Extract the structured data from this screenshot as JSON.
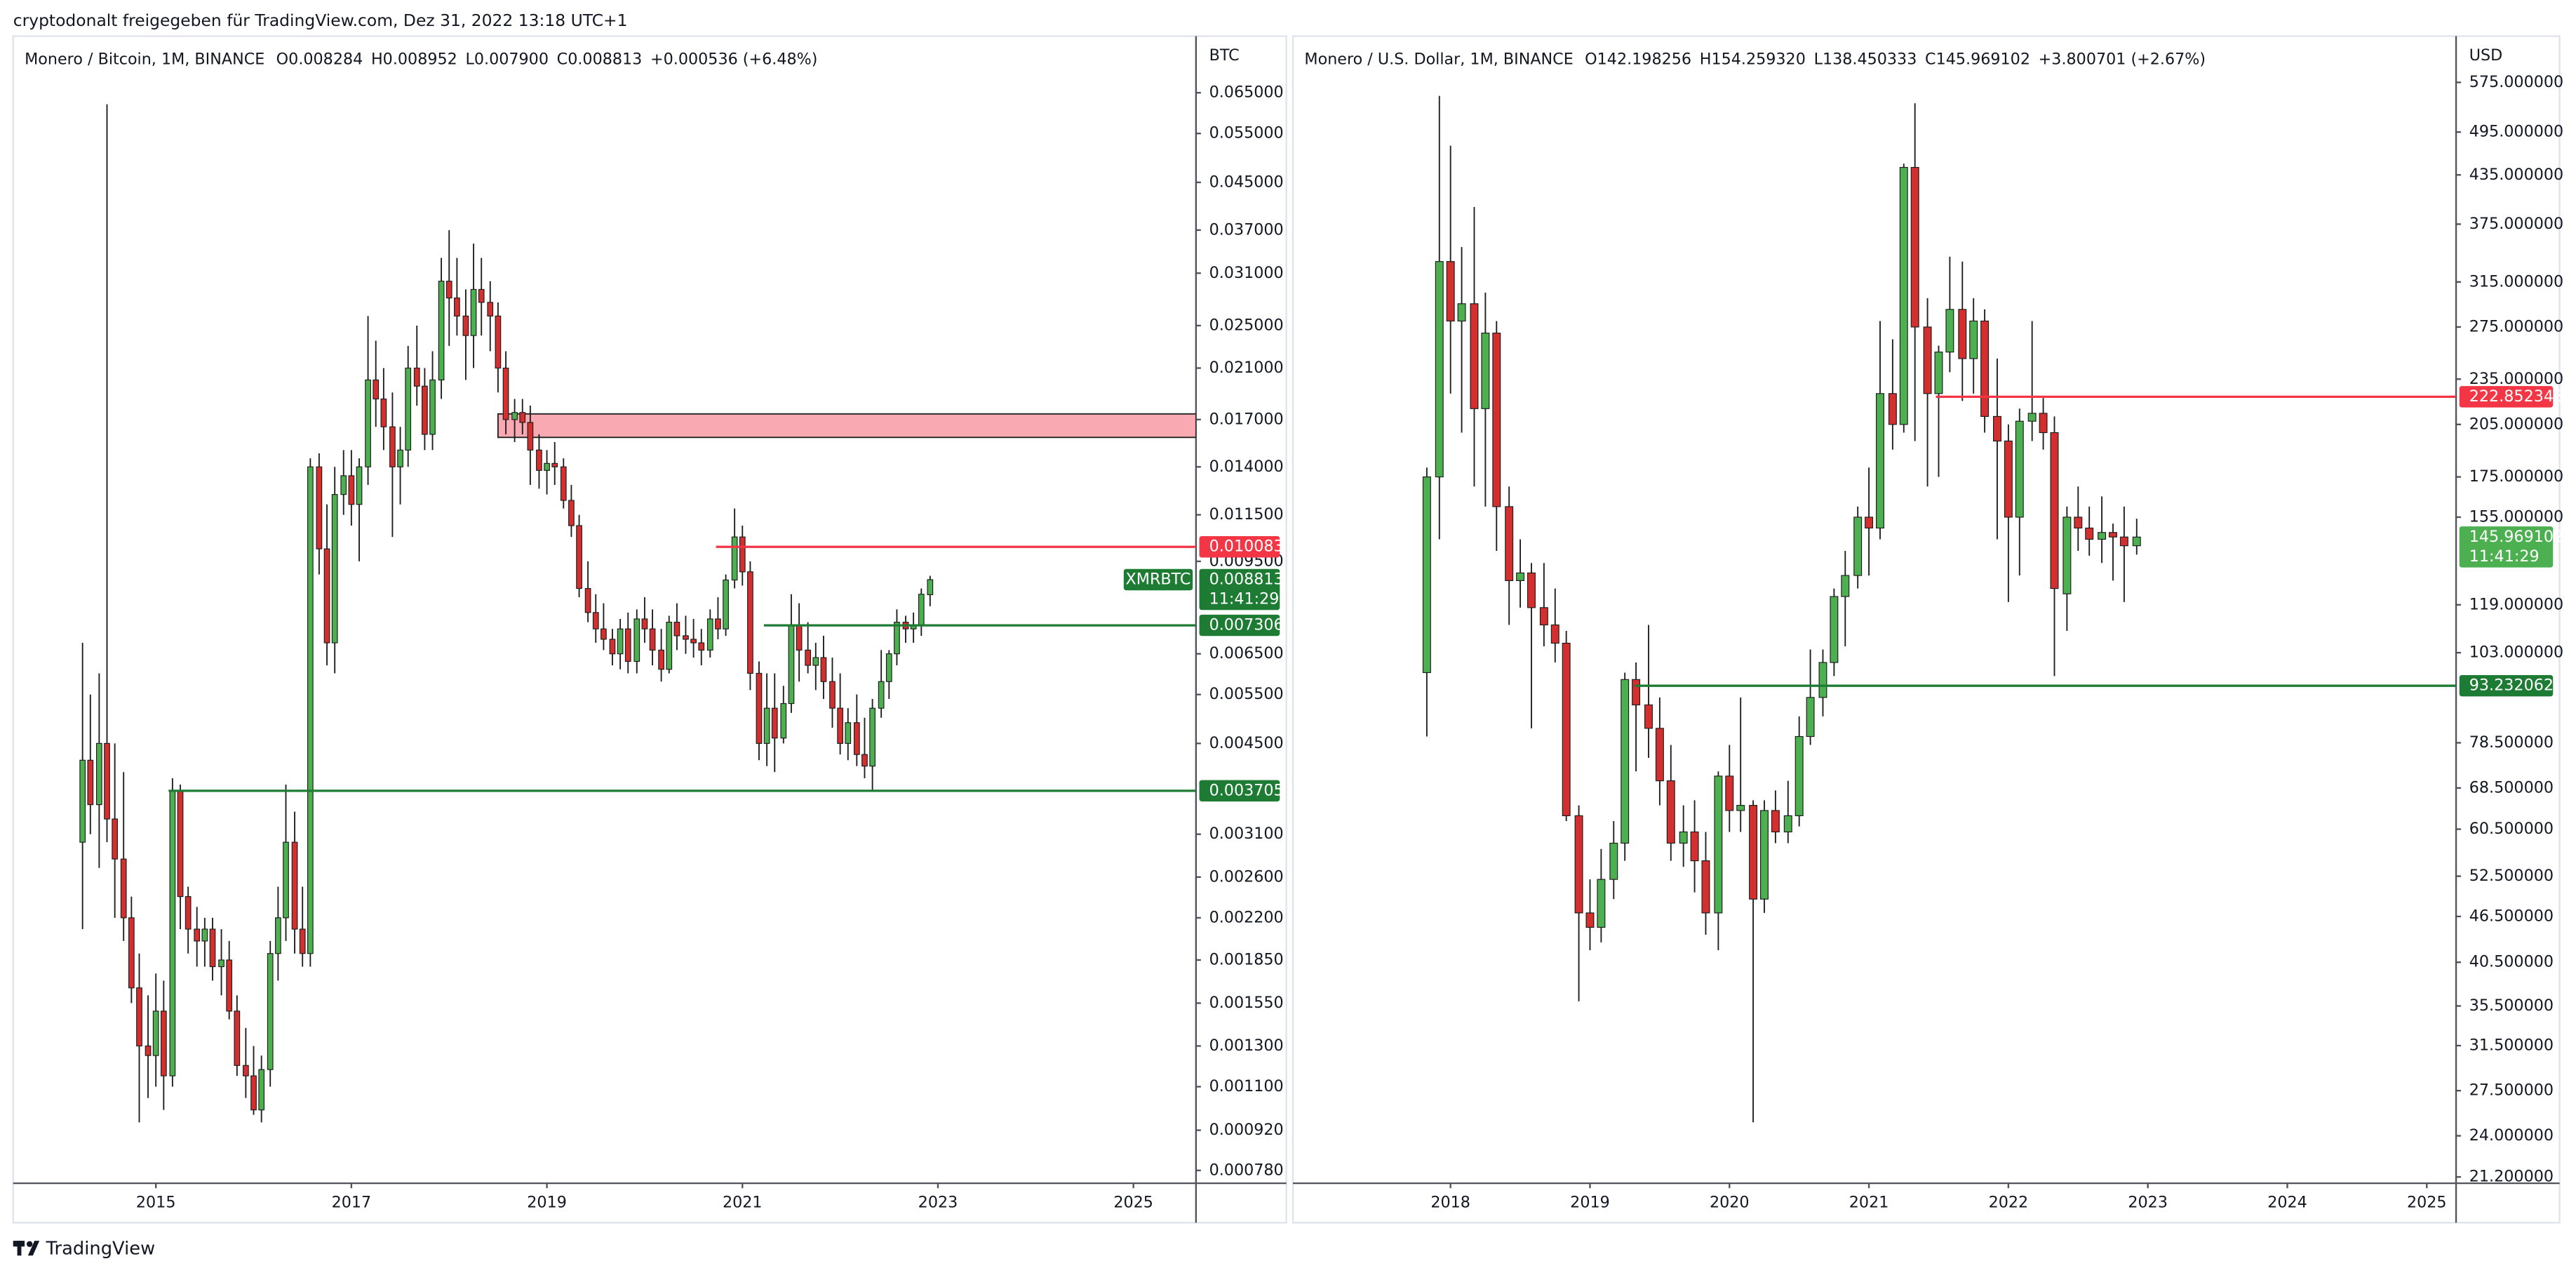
{
  "header": {
    "text": "cryptodonalt freigegeben für TradingView.com, Dez 31, 2022 13:18 UTC+1"
  },
  "footer": {
    "brand": "TradingView"
  },
  "chart_data": [
    {
      "type": "candlestick",
      "legend": [
        "Monero / Bitcoin, 1M, BINANCE",
        "O0.008284",
        "H0.008952",
        "L0.007900",
        "C0.008813",
        "+0.000536 (+6.48%)"
      ],
      "axis_unit": "BTC",
      "log_y": true,
      "up_color": "#4caf50",
      "down_color": "#d32f2f",
      "wick_color": "#1e1e1e",
      "xlim": [
        2013.54,
        2025.64
      ],
      "xticks": [
        2015,
        2017,
        2019,
        2021,
        2023,
        2025
      ],
      "ylim": [
        0.00074,
        0.082
      ],
      "yticks": [
        {
          "value": 0.065,
          "label": "0.065000"
        },
        {
          "value": 0.055,
          "label": "0.055000"
        },
        {
          "value": 0.045,
          "label": "0.045000"
        },
        {
          "value": 0.037,
          "label": "0.037000"
        },
        {
          "value": 0.031,
          "label": "0.031000"
        },
        {
          "value": 0.025,
          "label": "0.025000"
        },
        {
          "value": 0.021,
          "label": "0.021000"
        },
        {
          "value": 0.017,
          "label": "0.017000"
        },
        {
          "value": 0.014,
          "label": "0.014000"
        },
        {
          "value": 0.0115,
          "label": "0.011500"
        },
        {
          "value": 0.0095,
          "label": "0.009500"
        },
        {
          "value": 0.0065,
          "label": "0.006500"
        },
        {
          "value": 0.0055,
          "label": "0.005500"
        },
        {
          "value": 0.0045,
          "label": "0.004500"
        },
        {
          "value": 0.0031,
          "label": "0.003100"
        },
        {
          "value": 0.0026,
          "label": "0.002600"
        },
        {
          "value": 0.0022,
          "label": "0.002200"
        },
        {
          "value": 0.00185,
          "label": "0.001850"
        },
        {
          "value": 0.00155,
          "label": "0.001550"
        },
        {
          "value": 0.0013,
          "label": "0.001300"
        },
        {
          "value": 0.0011,
          "label": "0.001100"
        },
        {
          "value": 0.00092,
          "label": "0.000920"
        },
        {
          "value": 0.00078,
          "label": "0.000780"
        }
      ],
      "x": [
        2014.25,
        2014.33,
        2014.42,
        2014.5,
        2014.58,
        2014.67,
        2014.75,
        2014.83,
        2014.92,
        2015,
        2015.08,
        2015.17,
        2015.25,
        2015.33,
        2015.42,
        2015.5,
        2015.58,
        2015.67,
        2015.75,
        2015.83,
        2015.92,
        2016,
        2016.08,
        2016.17,
        2016.25,
        2016.33,
        2016.42,
        2016.5,
        2016.58,
        2016.67,
        2016.75,
        2016.83,
        2016.92,
        2017,
        2017.08,
        2017.17,
        2017.25,
        2017.33,
        2017.42,
        2017.5,
        2017.58,
        2017.67,
        2017.75,
        2017.83,
        2017.92,
        2018,
        2018.08,
        2018.17,
        2018.25,
        2018.33,
        2018.42,
        2018.5,
        2018.58,
        2018.67,
        2018.75,
        2018.83,
        2018.92,
        2019,
        2019.08,
        2019.17,
        2019.25,
        2019.33,
        2019.42,
        2019.5,
        2019.58,
        2019.67,
        2019.75,
        2019.83,
        2019.92,
        2020,
        2020.08,
        2020.17,
        2020.25,
        2020.33,
        2020.42,
        2020.5,
        2020.58,
        2020.67,
        2020.75,
        2020.83,
        2020.92,
        2021,
        2021.08,
        2021.17,
        2021.25,
        2021.33,
        2021.42,
        2021.5,
        2021.58,
        2021.67,
        2021.75,
        2021.83,
        2021.92,
        2022,
        2022.08,
        2022.17,
        2022.25,
        2022.33,
        2022.42,
        2022.5,
        2022.58,
        2022.67,
        2022.75,
        2022.83,
        2022.92
      ],
      "open": [
        0.003,
        0.0042,
        0.0035,
        0.0045,
        0.0033,
        0.0028,
        0.0022,
        0.00165,
        0.0013,
        0.00125,
        0.0015,
        0.00115,
        0.0037,
        0.0024,
        0.0021,
        0.002,
        0.0021,
        0.0018,
        0.00185,
        0.0015,
        0.0012,
        0.00115,
        0.001,
        0.00118,
        0.0019,
        0.0022,
        0.003,
        0.0021,
        0.0019,
        0.014,
        0.01,
        0.0068,
        0.0125,
        0.0135,
        0.012,
        0.014,
        0.02,
        0.0185,
        0.0165,
        0.014,
        0.015,
        0.021,
        0.0195,
        0.016,
        0.02,
        0.03,
        0.028,
        0.026,
        0.024,
        0.029,
        0.0275,
        0.026,
        0.021,
        0.017,
        0.0175,
        0.0168,
        0.015,
        0.0138,
        0.0142,
        0.014,
        0.0122,
        0.011,
        0.0085,
        0.0077,
        0.0072,
        0.0069,
        0.0065,
        0.0072,
        0.0063,
        0.0075,
        0.0072,
        0.0066,
        0.0061,
        0.0074,
        0.007,
        0.0069,
        0.0068,
        0.0066,
        0.0075,
        0.0072,
        0.0088,
        0.0105,
        0.0091,
        0.006,
        0.0045,
        0.0052,
        0.0046,
        0.0053,
        0.0073,
        0.0066,
        0.0062,
        0.0064,
        0.0058,
        0.0052,
        0.0045,
        0.0049,
        0.0043,
        0.0041,
        0.0052,
        0.0058,
        0.0065,
        0.0074,
        0.0072,
        0.0073,
        0.008284
      ],
      "high": [
        0.0068,
        0.0055,
        0.006,
        0.062,
        0.0045,
        0.004,
        0.0024,
        0.0019,
        0.0016,
        0.00175,
        0.0017,
        0.0039,
        0.0038,
        0.0025,
        0.0023,
        0.0022,
        0.0022,
        0.0021,
        0.002,
        0.0016,
        0.0014,
        0.0013,
        0.00125,
        0.002,
        0.0025,
        0.0038,
        0.0034,
        0.0025,
        0.0145,
        0.0148,
        0.012,
        0.014,
        0.015,
        0.015,
        0.0145,
        0.026,
        0.0235,
        0.021,
        0.019,
        0.0165,
        0.023,
        0.025,
        0.021,
        0.0225,
        0.033,
        0.037,
        0.033,
        0.029,
        0.035,
        0.033,
        0.03,
        0.0275,
        0.0225,
        0.0185,
        0.0185,
        0.018,
        0.016,
        0.015,
        0.0155,
        0.0145,
        0.013,
        0.0115,
        0.0095,
        0.0083,
        0.008,
        0.0072,
        0.0075,
        0.0077,
        0.0078,
        0.0082,
        0.0078,
        0.0072,
        0.0076,
        0.008,
        0.0076,
        0.0075,
        0.0072,
        0.0078,
        0.0082,
        0.009,
        0.0118,
        0.011,
        0.0095,
        0.0063,
        0.006,
        0.006,
        0.0057,
        0.0083,
        0.008,
        0.0074,
        0.0068,
        0.007,
        0.0064,
        0.006,
        0.0052,
        0.0055,
        0.005,
        0.0054,
        0.0066,
        0.0066,
        0.0078,
        0.0076,
        0.0077,
        0.0085,
        0.008952
      ],
      "low": [
        0.0021,
        0.0031,
        0.0027,
        0.003,
        0.0022,
        0.002,
        0.00155,
        0.00095,
        0.00105,
        0.0011,
        0.001,
        0.0011,
        0.0021,
        0.0019,
        0.0018,
        0.0018,
        0.0017,
        0.0016,
        0.00145,
        0.00115,
        0.00105,
        0.00098,
        0.00095,
        0.0011,
        0.0017,
        0.002,
        0.0019,
        0.0018,
        0.0018,
        0.009,
        0.0062,
        0.006,
        0.0115,
        0.011,
        0.0095,
        0.013,
        0.0165,
        0.015,
        0.0105,
        0.012,
        0.014,
        0.018,
        0.015,
        0.015,
        0.0185,
        0.023,
        0.024,
        0.02,
        0.021,
        0.024,
        0.0225,
        0.019,
        0.016,
        0.0155,
        0.016,
        0.013,
        0.0128,
        0.0125,
        0.013,
        0.0118,
        0.0105,
        0.0082,
        0.0074,
        0.0068,
        0.0066,
        0.0062,
        0.0061,
        0.006,
        0.006,
        0.0068,
        0.0062,
        0.0058,
        0.006,
        0.0066,
        0.0065,
        0.0064,
        0.0062,
        0.0064,
        0.0069,
        0.007,
        0.0085,
        0.0086,
        0.0056,
        0.0042,
        0.0041,
        0.004,
        0.0045,
        0.0051,
        0.0058,
        0.006,
        0.0056,
        0.0054,
        0.0048,
        0.0043,
        0.0042,
        0.0041,
        0.0039,
        0.0037,
        0.005,
        0.0054,
        0.0062,
        0.0068,
        0.0068,
        0.007,
        0.0079
      ],
      "close": [
        0.0042,
        0.0035,
        0.0045,
        0.0033,
        0.0028,
        0.0022,
        0.00165,
        0.0013,
        0.00125,
        0.0015,
        0.00115,
        0.0037,
        0.0024,
        0.0021,
        0.002,
        0.0021,
        0.0018,
        0.00185,
        0.0015,
        0.0012,
        0.00115,
        0.001,
        0.00118,
        0.0019,
        0.0022,
        0.003,
        0.0021,
        0.0019,
        0.014,
        0.01,
        0.0068,
        0.0125,
        0.0135,
        0.012,
        0.014,
        0.02,
        0.0185,
        0.0165,
        0.014,
        0.015,
        0.021,
        0.0195,
        0.016,
        0.02,
        0.03,
        0.028,
        0.026,
        0.024,
        0.029,
        0.0275,
        0.026,
        0.021,
        0.017,
        0.0175,
        0.0168,
        0.015,
        0.0138,
        0.0142,
        0.014,
        0.0122,
        0.011,
        0.0085,
        0.0077,
        0.0072,
        0.0069,
        0.0065,
        0.0072,
        0.0063,
        0.0075,
        0.0072,
        0.0066,
        0.0061,
        0.0074,
        0.007,
        0.0069,
        0.0068,
        0.0066,
        0.0075,
        0.0072,
        0.0088,
        0.0105,
        0.0091,
        0.006,
        0.0045,
        0.0052,
        0.0046,
        0.0053,
        0.0073,
        0.0066,
        0.0062,
        0.0064,
        0.0058,
        0.0052,
        0.0045,
        0.0049,
        0.0043,
        0.0041,
        0.0052,
        0.0058,
        0.0065,
        0.0074,
        0.0072,
        0.0073,
        0.0083,
        0.008813
      ],
      "zones": [
        {
          "from": 0.0158,
          "to": 0.0174,
          "start": 2018.5,
          "color": "#f9a9b1"
        }
      ],
      "levels": [
        {
          "value": 0.010083,
          "start": 2020.73,
          "color": "#f23645"
        },
        {
          "value": 0.007306,
          "start": 2021.22,
          "color": "#1e7b34"
        },
        {
          "value": 0.003705,
          "start": 2015.13,
          "color": "#1e7b34"
        }
      ],
      "last_price": {
        "symbol": "XMRBTC",
        "value": 0.008813,
        "countdown": "11:41:29",
        "color": "#1e7b34"
      }
    },
    {
      "type": "candlestick",
      "legend": [
        "Monero / U.S. Dollar, 1M, BINANCE",
        "O142.198256",
        "H154.259320",
        "L138.450333",
        "C145.969102",
        "+3.800701 (+2.67%)"
      ],
      "axis_unit": "USD",
      "log_y": true,
      "up_color": "#4caf50",
      "down_color": "#d32f2f",
      "wick_color": "#1e1e1e",
      "xlim": [
        2016.87,
        2025.21
      ],
      "xticks": [
        2018,
        2019,
        2020,
        2021,
        2022,
        2023,
        2024,
        2025
      ],
      "ylim": [
        20.8,
        661
      ],
      "yticks": [
        {
          "value": 575,
          "label": "575.000000"
        },
        {
          "value": 495,
          "label": "495.000000"
        },
        {
          "value": 435,
          "label": "435.000000"
        },
        {
          "value": 375,
          "label": "375.000000"
        },
        {
          "value": 315,
          "label": "315.000000"
        },
        {
          "value": 275,
          "label": "275.000000"
        },
        {
          "value": 235,
          "label": "235.000000"
        },
        {
          "value": 205,
          "label": "205.000000"
        },
        {
          "value": 175,
          "label": "175.000000"
        },
        {
          "value": 155,
          "label": "155.000000"
        },
        {
          "value": 119,
          "label": "119.000000"
        },
        {
          "value": 103,
          "label": "103.000000"
        },
        {
          "value": 78.5,
          "label": "78.500000"
        },
        {
          "value": 68.5,
          "label": "68.500000"
        },
        {
          "value": 60.5,
          "label": "60.500000"
        },
        {
          "value": 52.5,
          "label": "52.500000"
        },
        {
          "value": 46.5,
          "label": "46.500000"
        },
        {
          "value": 40.5,
          "label": "40.500000"
        },
        {
          "value": 35.5,
          "label": "35.500000"
        },
        {
          "value": 31.5,
          "label": "31.500000"
        },
        {
          "value": 27.5,
          "label": "27.500000"
        },
        {
          "value": 24,
          "label": "24.000000"
        },
        {
          "value": 21.2,
          "label": "21.200000"
        }
      ],
      "x": [
        2017.83,
        2017.92,
        2018,
        2018.08,
        2018.17,
        2018.25,
        2018.33,
        2018.42,
        2018.5,
        2018.58,
        2018.67,
        2018.75,
        2018.83,
        2018.92,
        2019,
        2019.08,
        2019.17,
        2019.25,
        2019.33,
        2019.42,
        2019.5,
        2019.58,
        2019.67,
        2019.75,
        2019.83,
        2019.92,
        2020,
        2020.08,
        2020.17,
        2020.25,
        2020.33,
        2020.42,
        2020.5,
        2020.58,
        2020.67,
        2020.75,
        2020.83,
        2020.92,
        2021,
        2021.08,
        2021.17,
        2021.25,
        2021.33,
        2021.42,
        2021.5,
        2021.58,
        2021.67,
        2021.75,
        2021.83,
        2021.92,
        2022,
        2022.08,
        2022.17,
        2022.25,
        2022.33,
        2022.42,
        2022.5,
        2022.58,
        2022.67,
        2022.75,
        2022.83,
        2022.92
      ],
      "open": [
        97,
        175,
        335,
        280,
        295,
        215,
        270,
        160,
        128,
        131,
        118,
        112,
        106,
        63,
        47,
        45,
        52,
        58,
        95,
        88,
        82,
        70,
        58,
        60,
        55,
        47,
        71,
        64,
        65,
        49,
        64,
        60,
        63,
        80,
        90,
        100,
        122,
        130,
        155,
        150,
        225,
        205,
        445,
        275,
        225,
        255,
        290,
        250,
        280,
        210,
        195,
        155,
        207,
        212,
        200,
        123,
        155,
        150,
        145,
        148,
        146,
        142.198256
      ],
      "high": [
        180,
        552,
        475,
        350,
        395,
        305,
        280,
        170,
        145,
        135,
        135,
        125,
        110,
        65,
        52,
        57,
        62,
        97,
        100,
        112,
        90,
        78,
        65,
        66,
        60,
        72,
        78,
        90,
        66,
        66,
        68,
        70,
        85,
        104,
        104,
        125,
        140,
        160,
        180,
        280,
        265,
        450,
        540,
        300,
        260,
        340,
        335,
        300,
        290,
        250,
        205,
        215,
        280,
        222,
        210,
        160,
        170,
        160,
        165,
        152,
        160,
        154.25932
      ],
      "low": [
        80,
        145,
        225,
        200,
        170,
        160,
        140,
        112,
        118,
        82,
        105,
        100,
        62,
        36,
        42,
        43,
        49,
        55,
        72,
        75,
        65,
        55,
        54,
        50,
        44,
        42,
        60,
        60,
        25,
        47,
        58,
        58,
        61,
        78,
        85,
        96,
        105,
        125,
        130,
        145,
        190,
        200,
        195,
        170,
        175,
        240,
        220,
        225,
        200,
        145,
        120,
        130,
        195,
        190,
        96,
        110,
        140,
        138,
        135,
        128,
        120,
        138.450333
      ],
      "close": [
        175,
        335,
        280,
        295,
        215,
        270,
        160,
        128,
        131,
        118,
        112,
        106,
        63,
        47,
        45,
        52,
        58,
        95,
        88,
        82,
        70,
        58,
        60,
        55,
        47,
        71,
        64,
        65,
        49,
        64,
        60,
        63,
        80,
        90,
        100,
        122,
        130,
        155,
        150,
        225,
        205,
        445,
        275,
        225,
        255,
        290,
        250,
        280,
        210,
        195,
        155,
        207,
        212,
        200,
        125,
        155,
        150,
        145,
        148,
        146,
        142.198256,
        145.969102
      ],
      "levels": [
        {
          "value": 222.852343,
          "start": 2021.48,
          "color": "#f23645"
        },
        {
          "value": 93.232062,
          "start": 2019.32,
          "color": "#1e7b34"
        }
      ],
      "last_price": {
        "value": 145.969102,
        "countdown": "11:41:29",
        "color": "#4caf50"
      }
    }
  ]
}
